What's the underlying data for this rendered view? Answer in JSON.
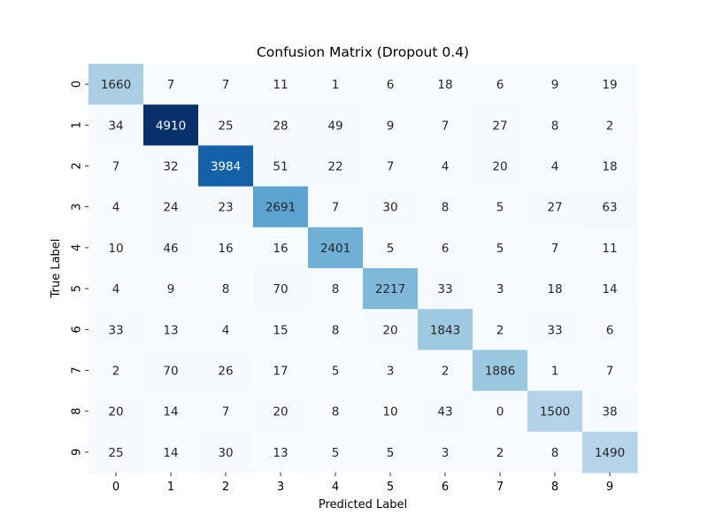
{
  "chart_data": {
    "type": "heatmap",
    "title": "Confusion Matrix (Dropout 0.4)",
    "xlabel": "Predicted Label",
    "ylabel": "True Label",
    "x_categories": [
      "0",
      "1",
      "2",
      "3",
      "4",
      "5",
      "6",
      "7",
      "8",
      "9"
    ],
    "y_categories": [
      "0",
      "1",
      "2",
      "3",
      "4",
      "5",
      "6",
      "7",
      "8",
      "9"
    ],
    "colormap": "Blues",
    "color_range": [
      0,
      4910
    ],
    "colorbar": false,
    "matrix": [
      [
        1660,
        7,
        7,
        11,
        1,
        6,
        18,
        6,
        9,
        19
      ],
      [
        34,
        4910,
        25,
        28,
        49,
        9,
        7,
        27,
        8,
        2
      ],
      [
        7,
        32,
        3984,
        51,
        22,
        7,
        4,
        20,
        4,
        18
      ],
      [
        4,
        24,
        23,
        2691,
        7,
        30,
        8,
        5,
        27,
        63
      ],
      [
        10,
        46,
        16,
        16,
        2401,
        5,
        6,
        5,
        7,
        11
      ],
      [
        4,
        9,
        8,
        70,
        8,
        2217,
        33,
        3,
        18,
        14
      ],
      [
        33,
        13,
        4,
        15,
        8,
        20,
        1843,
        2,
        33,
        6
      ],
      [
        2,
        70,
        26,
        17,
        5,
        3,
        2,
        1886,
        1,
        7
      ],
      [
        20,
        14,
        7,
        20,
        8,
        10,
        43,
        0,
        1500,
        38
      ],
      [
        25,
        14,
        30,
        13,
        5,
        5,
        3,
        2,
        8,
        1490
      ]
    ]
  }
}
